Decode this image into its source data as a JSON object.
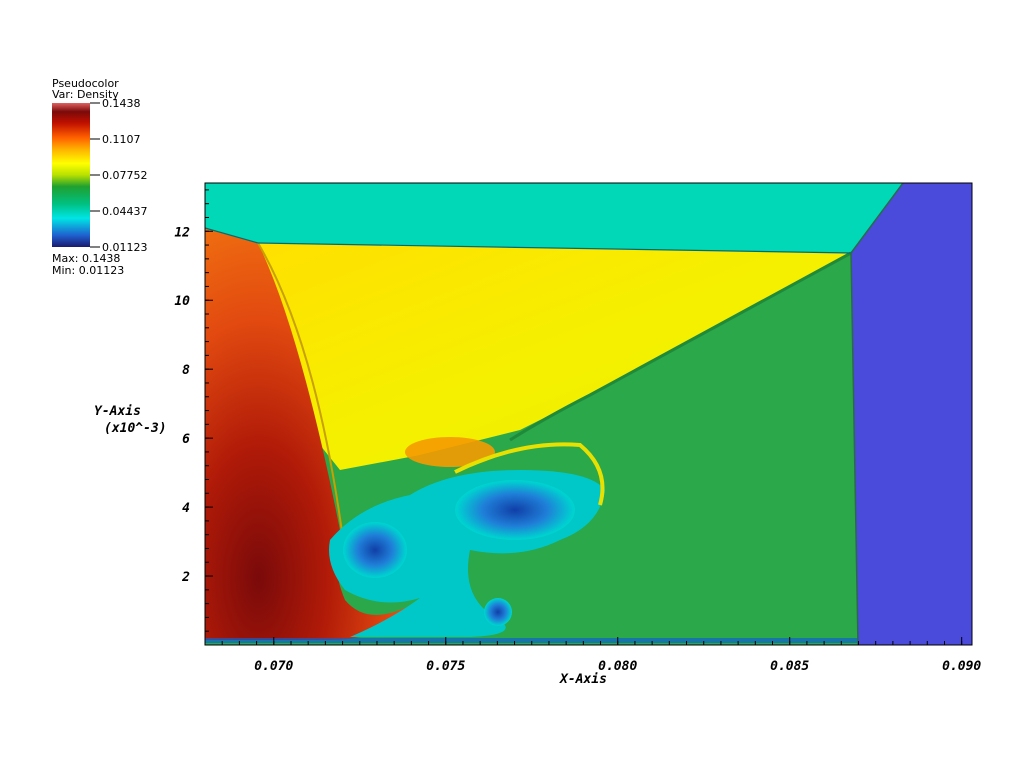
{
  "legend": {
    "plot_type": "Pseudocolor",
    "var_label": "Var: Density",
    "tick_labels": [
      "0.1438",
      "0.1107",
      "0.07752",
      "0.04437",
      "0.01123"
    ],
    "max_label": "Max: 0.1438",
    "min_label": "Min: 0.01123",
    "colormap": [
      "#1a1a6e",
      "#1f5fcf",
      "#00e5e5",
      "#00c080",
      "#20a030",
      "#b8e000",
      "#ffff00",
      "#ffb000",
      "#ff6000",
      "#c01000",
      "#7a0a0a",
      "#e06060"
    ]
  },
  "chart_data": {
    "type": "heatmap",
    "variable": "Density",
    "xlabel": "X-Axis",
    "ylabel": "Y-Axis",
    "ylabel_scale": "(x10^-3)",
    "xlim": [
      0.068,
      0.0903
    ],
    "ylim": [
      0.0,
      13.4
    ],
    "x_ticks": [
      0.07,
      0.075,
      0.08,
      0.085,
      0.09
    ],
    "x_tick_labels": [
      "0.070",
      "0.075",
      "0.080",
      "0.085",
      "0.090"
    ],
    "y_ticks": [
      2,
      4,
      6,
      8,
      10,
      12
    ],
    "y_tick_labels": [
      "2",
      "4",
      "6",
      "8",
      "10",
      "12"
    ],
    "value_range": [
      0.01123,
      0.1438
    ],
    "regions": {
      "ambient_top": "#00d8b8",
      "pre_shock_right": "#4a4adb",
      "shocked_green": "#2aa84a",
      "mach_stem_red": "#e05010",
      "yellow_region": "#f5f000",
      "vortex_cyan": "#00c8c8",
      "vortex_core_blue": "#1f5fcf"
    }
  }
}
